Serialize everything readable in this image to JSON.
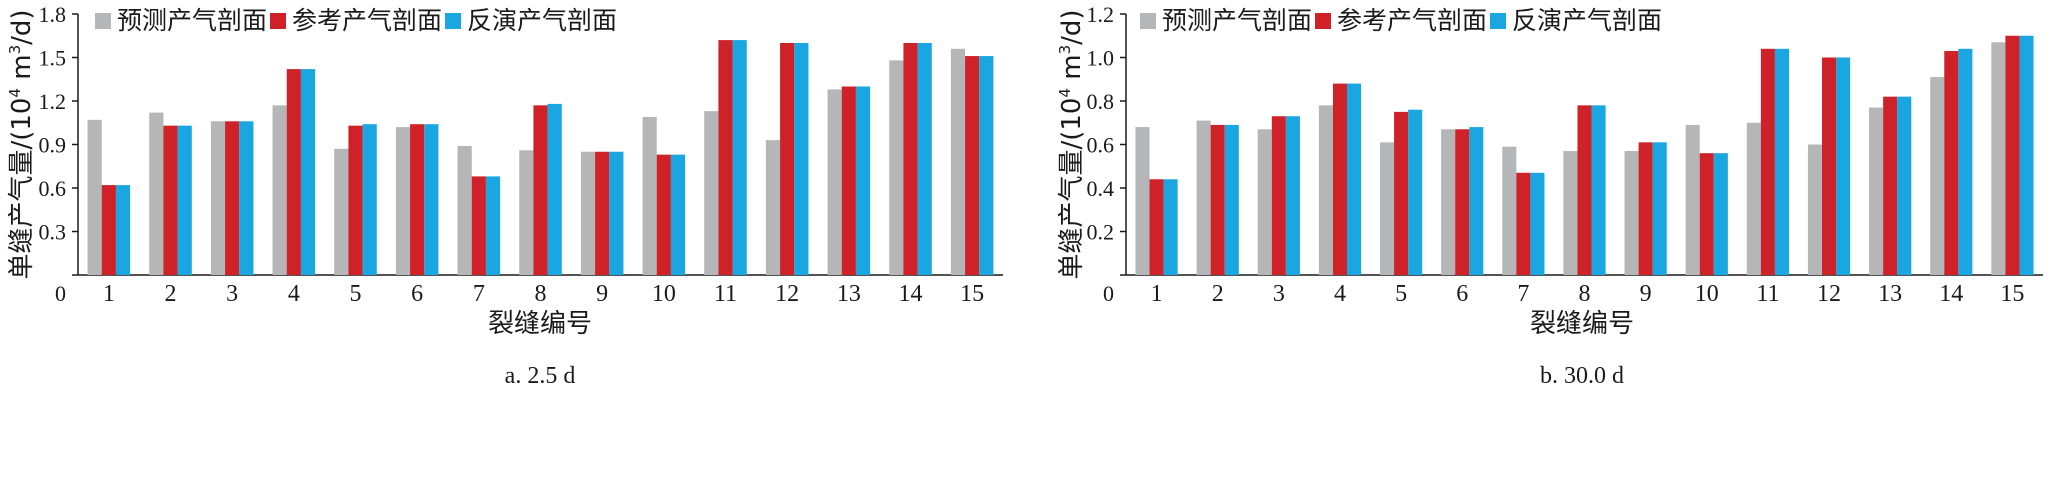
{
  "colors": {
    "predicted": "#b5b6b8",
    "reference": "#cf2128",
    "inverted": "#1aa6e0"
  },
  "chart_data": [
    {
      "type": "bar",
      "caption": "a. 2.5 d",
      "xlabel": "裂缝编号",
      "ylabel": "单缝产气量/(10",
      "ylabel_sup": "4",
      "ylabel_unit": " m",
      "ylabel_sup2": "3",
      "ylabel_end": "/d)",
      "ylim": [
        0,
        1.8
      ],
      "yticks": [
        0,
        0.3,
        0.6,
        0.9,
        1.2,
        1.5,
        1.8
      ],
      "ytick_labels": [
        "0",
        "0.3",
        "0.6",
        "0.9",
        "1.2",
        "1.5",
        "1.8"
      ],
      "categories": [
        "1",
        "2",
        "3",
        "4",
        "5",
        "6",
        "7",
        "8",
        "9",
        "10",
        "11",
        "12",
        "13",
        "14",
        "15"
      ],
      "legend": "top-left",
      "series": [
        {
          "name": "预测产气剖面",
          "values": [
            1.07,
            1.12,
            1.06,
            1.17,
            0.87,
            1.02,
            0.89,
            0.86,
            0.85,
            1.09,
            1.13,
            0.93,
            1.28,
            1.48,
            1.56
          ]
        },
        {
          "name": "参考产气剖面",
          "values": [
            0.62,
            1.03,
            1.06,
            1.42,
            1.03,
            1.04,
            0.68,
            1.17,
            0.85,
            0.83,
            1.62,
            1.6,
            1.3,
            1.6,
            1.51
          ]
        },
        {
          "name": "反演产气剖面",
          "values": [
            0.62,
            1.03,
            1.06,
            1.42,
            1.04,
            1.04,
            0.68,
            1.18,
            0.85,
            0.83,
            1.62,
            1.6,
            1.3,
            1.6,
            1.51
          ]
        }
      ]
    },
    {
      "type": "bar",
      "caption": "b. 30.0 d",
      "xlabel": "裂缝编号",
      "ylabel": "单缝产气量/(10",
      "ylabel_sup": "4",
      "ylabel_unit": " m",
      "ylabel_sup2": "3",
      "ylabel_end": "/d)",
      "ylim": [
        0,
        1.2
      ],
      "yticks": [
        0,
        0.2,
        0.4,
        0.6,
        0.8,
        1.0,
        1.2
      ],
      "ytick_labels": [
        "0",
        "0.2",
        "0.4",
        "0.6",
        "0.8",
        "1.0",
        "1.2"
      ],
      "categories": [
        "1",
        "2",
        "3",
        "4",
        "5",
        "6",
        "7",
        "8",
        "9",
        "10",
        "11",
        "12",
        "13",
        "14",
        "15"
      ],
      "legend": "top-left",
      "series": [
        {
          "name": "预测产气剖面",
          "values": [
            0.68,
            0.71,
            0.67,
            0.78,
            0.61,
            0.67,
            0.59,
            0.57,
            0.57,
            0.69,
            0.7,
            0.6,
            0.77,
            0.91,
            1.07
          ]
        },
        {
          "name": "参考产气剖面",
          "values": [
            0.44,
            0.69,
            0.73,
            0.88,
            0.75,
            0.67,
            0.47,
            0.78,
            0.61,
            0.56,
            1.04,
            1.0,
            0.82,
            1.03,
            1.1
          ]
        },
        {
          "name": "反演产气剖面",
          "values": [
            0.44,
            0.69,
            0.73,
            0.88,
            0.76,
            0.68,
            0.47,
            0.78,
            0.61,
            0.56,
            1.04,
            1.0,
            0.82,
            1.04,
            1.1
          ]
        }
      ]
    }
  ]
}
